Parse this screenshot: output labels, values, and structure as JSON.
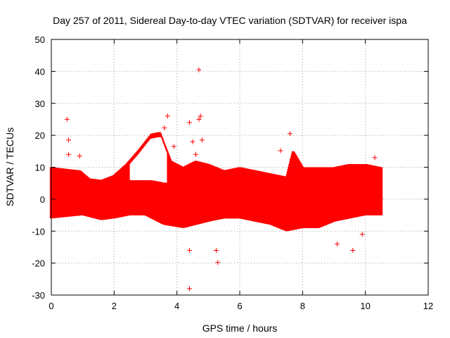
{
  "chart_data": {
    "type": "scatter",
    "title": "Day 257 of 2011, Sidereal Day-to-day VTEC variation (SDTVAR) for receiver ispa",
    "xlabel": "GPS time / hours",
    "ylabel": "SDTVAR / TECUs",
    "xlim": [
      0,
      12
    ],
    "ylim": [
      -30,
      50
    ],
    "xticks": [
      0,
      2,
      4,
      6,
      8,
      10,
      12
    ],
    "yticks": [
      -30,
      -20,
      -10,
      0,
      10,
      20,
      30,
      40,
      50
    ],
    "grid": true,
    "series": [
      {
        "name": "SDTVAR",
        "color": "#ff0000",
        "marker": "+",
        "x_range": [
          0,
          10.5
        ],
        "upper_envelope": [
          [
            0,
            10
          ],
          [
            0.9,
            9
          ],
          [
            1.2,
            6.5
          ],
          [
            1.6,
            6
          ],
          [
            2.0,
            7.5
          ],
          [
            2.4,
            11
          ],
          [
            2.8,
            15.5
          ],
          [
            3.2,
            20.5
          ],
          [
            3.45,
            21
          ],
          [
            3.6,
            17
          ],
          [
            3.8,
            12
          ],
          [
            4.2,
            10
          ],
          [
            4.6,
            12
          ],
          [
            5.0,
            11
          ],
          [
            5.5,
            9
          ],
          [
            6.0,
            10
          ],
          [
            6.5,
            9
          ],
          [
            7.0,
            8
          ],
          [
            7.5,
            7
          ],
          [
            7.7,
            15
          ],
          [
            8.0,
            10
          ],
          [
            8.5,
            10
          ],
          [
            9.0,
            10
          ],
          [
            9.5,
            11
          ],
          [
            10.0,
            11
          ],
          [
            10.5,
            10
          ]
        ],
        "lower_envelope": [
          [
            0,
            -6
          ],
          [
            1.0,
            -5
          ],
          [
            1.6,
            -6.5
          ],
          [
            2.0,
            -6
          ],
          [
            2.5,
            -5
          ],
          [
            3.0,
            -5
          ],
          [
            3.6,
            -8
          ],
          [
            4.2,
            -9
          ],
          [
            4.6,
            -8
          ],
          [
            5.0,
            -7
          ],
          [
            5.5,
            -6
          ],
          [
            6.0,
            -6
          ],
          [
            6.5,
            -7
          ],
          [
            7.0,
            -8
          ],
          [
            7.5,
            -10
          ],
          [
            8.0,
            -9
          ],
          [
            8.5,
            -9
          ],
          [
            9.0,
            -7
          ],
          [
            9.5,
            -6
          ],
          [
            10.0,
            -5
          ],
          [
            10.5,
            -5
          ]
        ],
        "inner_arc_floor": [
          [
            2.3,
            6
          ],
          [
            2.8,
            6
          ],
          [
            3.2,
            6
          ],
          [
            3.5,
            5.5
          ],
          [
            3.7,
            5
          ]
        ],
        "outliers": [
          [
            0.5,
            25
          ],
          [
            0.55,
            18.5
          ],
          [
            0.55,
            14
          ],
          [
            0.9,
            13.5
          ],
          [
            3.6,
            22.3
          ],
          [
            3.7,
            26
          ],
          [
            3.9,
            16.5
          ],
          [
            4.4,
            24
          ],
          [
            4.5,
            18
          ],
          [
            4.6,
            14
          ],
          [
            4.7,
            40.5
          ],
          [
            4.7,
            25
          ],
          [
            4.75,
            26
          ],
          [
            4.8,
            18.5
          ],
          [
            4.4,
            -16
          ],
          [
            4.4,
            -28
          ],
          [
            5.25,
            -16
          ],
          [
            5.3,
            -19.8
          ],
          [
            7.3,
            15.2
          ],
          [
            7.6,
            20.5
          ],
          [
            9.1,
            -14
          ],
          [
            9.6,
            -16
          ],
          [
            9.9,
            -11
          ],
          [
            10.3,
            13
          ]
        ]
      }
    ]
  }
}
